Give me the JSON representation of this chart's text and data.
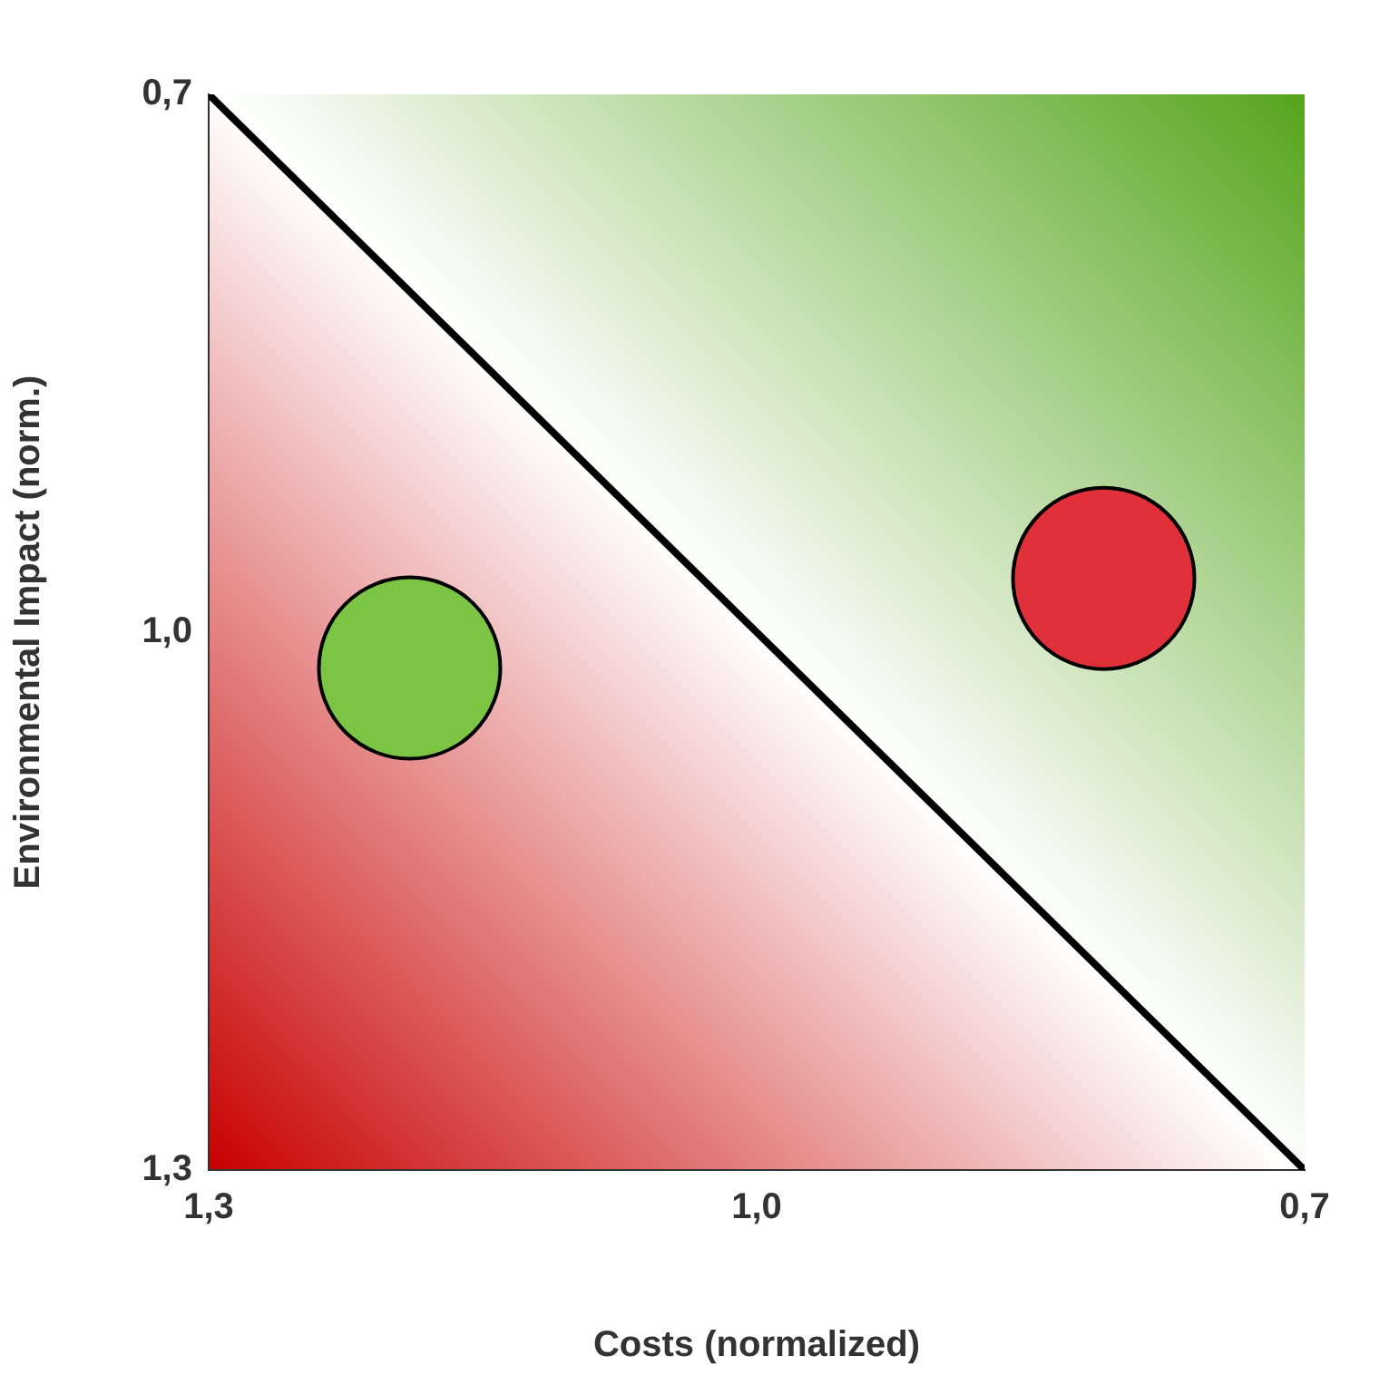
{
  "chart_data": {
    "type": "bubble",
    "xlabel": "Costs (normalized)",
    "ylabel": "Environmental Impact (norm.)",
    "xlim": [
      1.3,
      0.7
    ],
    "ylim": [
      1.3,
      0.7
    ],
    "xticks": [
      {
        "value": 1.3,
        "label": "1,3"
      },
      {
        "value": 1.0,
        "label": "1,0"
      },
      {
        "value": 0.7,
        "label": "0,7"
      }
    ],
    "yticks": [
      {
        "value": 1.3,
        "label": "1,3"
      },
      {
        "value": 1.0,
        "label": "1,0"
      },
      {
        "value": 0.7,
        "label": "0,7"
      }
    ],
    "grid": false,
    "legend": false,
    "series": [
      {
        "type": "line",
        "color": "#000000",
        "x": [
          1.3,
          0.7
        ],
        "values": [
          0.7,
          1.3
        ],
        "marker": "none"
      },
      {
        "type": "bubble",
        "x": [
          1.19,
          0.81
        ],
        "values": [
          1.02,
          0.97
        ],
        "sizes": [
          1,
          1
        ],
        "colors": [
          "#7cc443",
          "#e0313b"
        ]
      }
    ]
  }
}
